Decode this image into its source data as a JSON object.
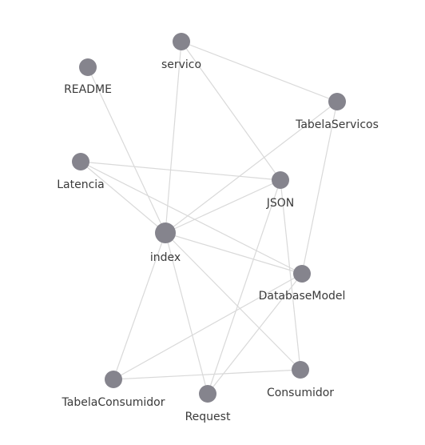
{
  "graph": {
    "node_color": "#85848d",
    "edge_color": "#d9d9d9",
    "label_color": "#3a3a3a",
    "nodes": [
      {
        "id": "servico",
        "label": "servico",
        "emphasis": "normal"
      },
      {
        "id": "README",
        "label": "README",
        "emphasis": "normal"
      },
      {
        "id": "TabelaServicos",
        "label": "TabelaServicos",
        "emphasis": "normal"
      },
      {
        "id": "Latencia",
        "label": "Latencia",
        "emphasis": "normal"
      },
      {
        "id": "JSON",
        "label": "JSON",
        "emphasis": "normal"
      },
      {
        "id": "index",
        "label": "index",
        "emphasis": "large"
      },
      {
        "id": "DatabaseModel",
        "label": "DatabaseModel",
        "emphasis": "normal"
      },
      {
        "id": "Consumidor",
        "label": "Consumidor",
        "emphasis": "normal"
      },
      {
        "id": "TabelaConsumidor",
        "label": "TabelaConsumidor",
        "emphasis": "normal"
      },
      {
        "id": "Request",
        "label": "Request",
        "emphasis": "normal"
      }
    ],
    "edges": [
      [
        "servico",
        "TabelaServicos"
      ],
      [
        "servico",
        "index"
      ],
      [
        "servico",
        "JSON"
      ],
      [
        "README",
        "index"
      ],
      [
        "TabelaServicos",
        "index"
      ],
      [
        "TabelaServicos",
        "DatabaseModel"
      ],
      [
        "Latencia",
        "JSON"
      ],
      [
        "Latencia",
        "index"
      ],
      [
        "Latencia",
        "DatabaseModel"
      ],
      [
        "JSON",
        "index"
      ],
      [
        "JSON",
        "Consumidor"
      ],
      [
        "JSON",
        "Request"
      ],
      [
        "index",
        "DatabaseModel"
      ],
      [
        "index",
        "Consumidor"
      ],
      [
        "index",
        "TabelaConsumidor"
      ],
      [
        "index",
        "Request"
      ],
      [
        "DatabaseModel",
        "TabelaConsumidor"
      ],
      [
        "DatabaseModel",
        "Request"
      ],
      [
        "TabelaConsumidor",
        "Consumidor"
      ]
    ]
  }
}
